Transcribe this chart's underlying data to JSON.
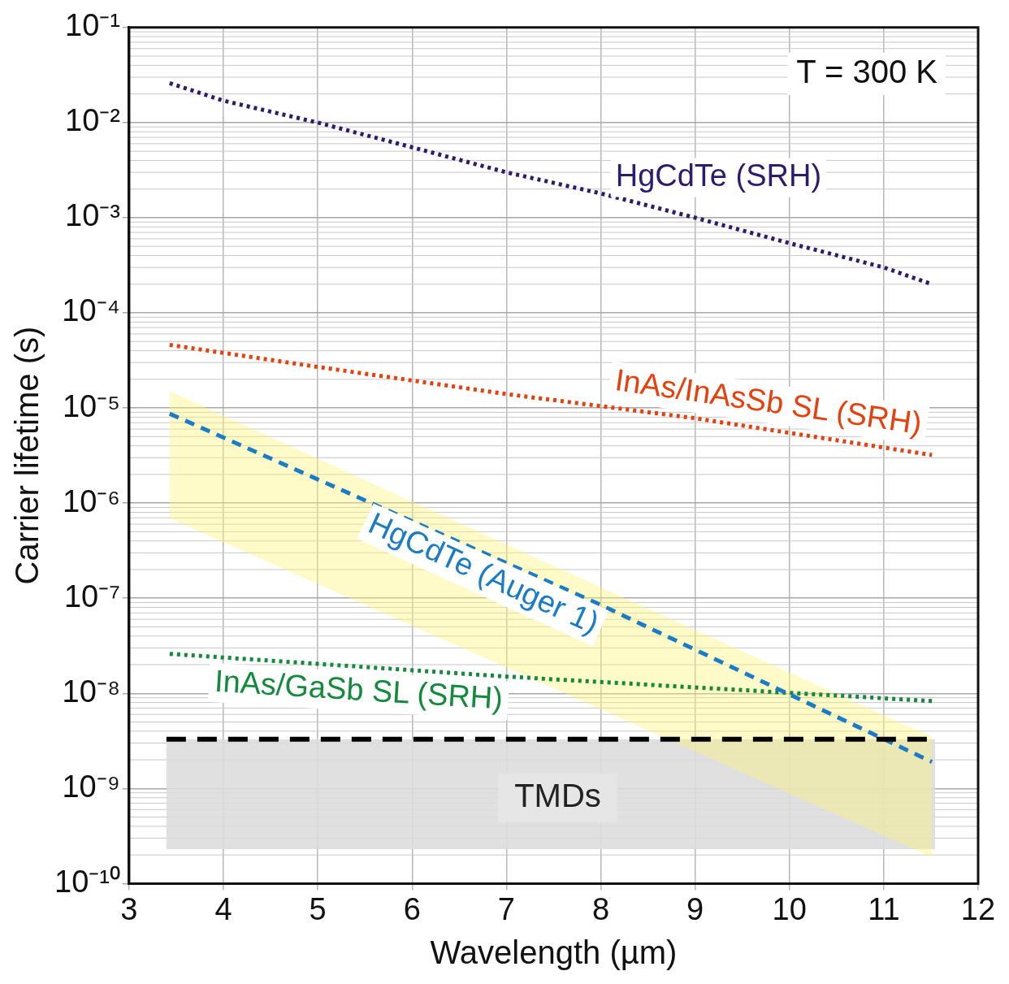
{
  "chart_data": {
    "type": "line",
    "xlabel": "Wavelength (µm)",
    "ylabel": "Carrier lifetime (s)",
    "log": "y",
    "xlim": [
      3,
      12
    ],
    "xticks": [
      3,
      4,
      5,
      6,
      7,
      8,
      9,
      10,
      11,
      12
    ],
    "ylim": [
      1e-10,
      0.1
    ],
    "yticks": [
      {
        "value": 1e-10,
        "label": "10⁻¹⁰"
      },
      {
        "value": 1e-09,
        "label": "10⁻⁹"
      },
      {
        "value": 1e-08,
        "label": "10⁻⁸"
      },
      {
        "value": 1e-07,
        "label": "10⁻⁷"
      },
      {
        "value": 1e-06,
        "label": "10⁻⁶"
      },
      {
        "value": 1e-05,
        "label": "10⁻⁵"
      },
      {
        "value": 0.0001,
        "label": "10⁻⁴"
      },
      {
        "value": 0.001,
        "label": "10⁻³"
      },
      {
        "value": 0.01,
        "label": "10⁻²"
      },
      {
        "value": 0.1,
        "label": "10⁻¹"
      }
    ],
    "grid": true,
    "legend": false,
    "marker": "none",
    "series": [
      {
        "name": "HgCdTe (SRH)",
        "color": "#2e1a6e",
        "line_style": "dotted",
        "x": [
          3.43,
          4,
          5,
          6,
          7,
          8,
          9,
          10,
          11,
          11.51
        ],
        "values": [
          0.026,
          0.017,
          0.01,
          0.0055,
          0.003,
          0.0018,
          0.001,
          0.00054,
          0.0003,
          0.0002
        ]
      },
      {
        "name": "InAs/InAsSb SL (SRH)",
        "color": "#e8400c",
        "line_style": "dotted",
        "x": [
          3.43,
          5,
          7,
          9,
          11.51
        ],
        "values": [
          4.6e-05,
          2.7e-05,
          1.4e-05,
          7.8e-06,
          3.2e-06
        ]
      },
      {
        "name": "HgCdTe (Auger 1)",
        "color": "#1a7cc4",
        "line_style": "dashed",
        "x": [
          3.43,
          8,
          11.51
        ],
        "values": [
          8.7e-06,
          8.5e-08,
          1.9e-09
        ],
        "lower": [
          6.9e-07,
          6.8e-09,
          1.9e-10
        ],
        "upper": [
          1.5e-05,
          1.3e-07,
          3.5e-09
        ]
      },
      {
        "name": "InAs/GaSb SL (SRH)",
        "color": "#138a3c",
        "line_style": "dotted",
        "x": [
          3.43,
          7,
          11.51
        ],
        "values": [
          2.6e-08,
          1.5e-08,
          8.3e-09
        ]
      }
    ],
    "bands": [
      {
        "axis": "y",
        "from": 2.3e-10,
        "to": 3.3e-09,
        "label": "TMDs",
        "color": "#dcdcdc"
      }
    ],
    "ref_lines": [
      {
        "axis": "y",
        "value": 3.3e-09,
        "color": "#000000",
        "line_style": "dashed"
      }
    ],
    "annotations": [
      "T = 300 K"
    ]
  }
}
